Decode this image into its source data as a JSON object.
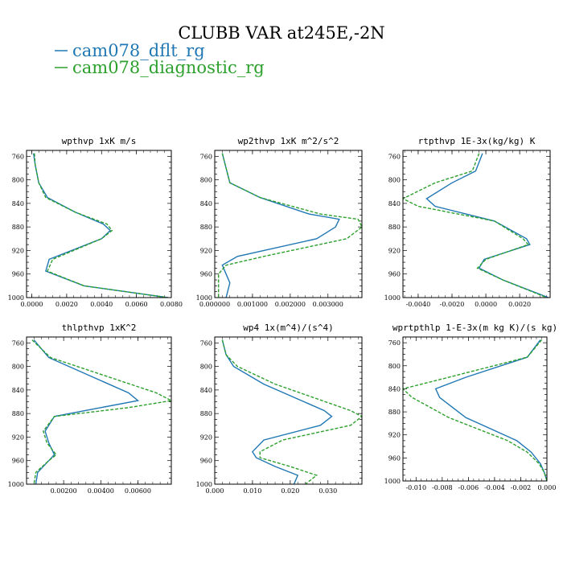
{
  "figure": {
    "title": "CLUBB VAR at245E,-2N",
    "legend": [
      {
        "label": "cam078_dflt_rg",
        "color": "#1f77b4"
      },
      {
        "label": "cam078_diagnostic_rg",
        "color": "#2ca02c"
      }
    ]
  },
  "chart_data": [
    {
      "type": "line",
      "title": "wpthvp  1xK m/s",
      "ylim": [
        1000,
        750
      ],
      "yticks": [
        760,
        800,
        840,
        880,
        920,
        960,
        1000
      ],
      "xlim": [
        -0.0003,
        0.008
      ],
      "xticks": [
        0,
        0.002,
        0.004,
        0.006,
        0.008
      ],
      "xticklabels": [
        "0.0000",
        "0.0020",
        "0.0040",
        "0.0060",
        "0.0080"
      ],
      "y": [
        755,
        775,
        805,
        830,
        855,
        875,
        886,
        900,
        935,
        955,
        980,
        1000
      ],
      "series": [
        {
          "name": "cam078_dflt_rg",
          "color": "#1f77b4",
          "values": [
            0.0001,
            0.0002,
            0.0004,
            0.0009,
            0.0025,
            0.0041,
            0.0045,
            0.004,
            0.001,
            0.0008,
            0.003,
            0.0078
          ]
        },
        {
          "name": "cam078_diagnostic_rg",
          "color": "#2ca02c",
          "values": [
            0.00015,
            0.0002,
            0.0004,
            0.0008,
            0.0025,
            0.0043,
            0.0046,
            0.004,
            0.0012,
            0.0009,
            0.003,
            0.0078
          ]
        }
      ]
    },
    {
      "type": "line",
      "title": "wp2thvp  1xK m^2/s^2",
      "ylim": [
        1000,
        750
      ],
      "yticks": [
        760,
        800,
        840,
        880,
        920,
        960,
        1000
      ],
      "xlim": [
        0,
        0.0039
      ],
      "xticks": [
        0,
        0.001,
        0.002,
        0.003
      ],
      "xticklabels": [
        "0.000000",
        "0.001000",
        "0.002000",
        "0.003000"
      ],
      "y": [
        755,
        780,
        805,
        830,
        858,
        867,
        880,
        900,
        930,
        945,
        960,
        975,
        1000
      ],
      "series": [
        {
          "name": "cam078_dflt_rg",
          "color": "#1f77b4",
          "values": [
            0.0002,
            0.0003,
            0.0004,
            0.0012,
            0.0025,
            0.0033,
            0.0032,
            0.0027,
            0.0006,
            0.0002,
            0.0003,
            0.0004,
            0.0003
          ]
        },
        {
          "name": "cam078_diagnostic_rg",
          "color": "#2ca02c",
          "values": [
            0.0002,
            0.0003,
            0.0004,
            0.0012,
            0.0028,
            0.0038,
            0.0039,
            0.0035,
            0.0013,
            0.0003,
            0.0001,
            0.0001,
            0.0001
          ]
        }
      ]
    },
    {
      "type": "line",
      "title": "rtpthvp  1E-3x(kg/kg) K",
      "ylim": [
        1000,
        750
      ],
      "yticks": [
        760,
        800,
        840,
        880,
        920,
        960,
        1000
      ],
      "xlim": [
        -0.0049,
        0.0038
      ],
      "xticks": [
        -0.004,
        -0.002,
        0,
        0.002
      ],
      "xticklabels": [
        "-0.0040",
        "-0.0020",
        "0.0000",
        "0.0020"
      ],
      "y": [
        755,
        785,
        805,
        832,
        845,
        870,
        900,
        910,
        935,
        950,
        970,
        1000
      ],
      "series": [
        {
          "name": "cam078_dflt_rg",
          "color": "#1f77b4",
          "values": [
            -0.0002,
            -0.0006,
            -0.002,
            -0.0035,
            -0.003,
            0.0005,
            0.0024,
            0.0026,
            -0.0001,
            -0.0004,
            0.001,
            0.0037
          ]
        },
        {
          "name": "cam078_diagnostic_rg",
          "color": "#2ca02c",
          "values": [
            -0.0004,
            -0.0008,
            -0.003,
            -0.0049,
            -0.004,
            0.0005,
            0.0022,
            0.0025,
            0.0,
            -0.0005,
            0.001,
            0.0036
          ]
        }
      ]
    },
    {
      "type": "line",
      "title": "thlpthvp  1xK^2",
      "ylim": [
        1000,
        750
      ],
      "yticks": [
        760,
        800,
        840,
        880,
        920,
        960,
        1000
      ],
      "xlim": [
        0,
        0.0078
      ],
      "xticks": [
        0.002,
        0.004,
        0.006
      ],
      "xticklabels": [
        "0.00200",
        "0.00400",
        "0.00600"
      ],
      "y": [
        755,
        785,
        845,
        858,
        870,
        885,
        910,
        930,
        950,
        960,
        980,
        1000
      ],
      "series": [
        {
          "name": "cam078_dflt_rg",
          "color": "#1f77b4",
          "values": [
            0.0004,
            0.0012,
            0.0055,
            0.006,
            0.004,
            0.0015,
            0.001,
            0.0012,
            0.0015,
            0.0012,
            0.0006,
            0.0005
          ]
        },
        {
          "name": "cam078_diagnostic_rg",
          "color": "#2ca02c",
          "values": [
            0.0003,
            0.0013,
            0.007,
            0.0078,
            0.0055,
            0.0015,
            0.0009,
            0.0011,
            0.0016,
            0.0012,
            0.0005,
            0.0004
          ]
        }
      ]
    },
    {
      "type": "line",
      "title": "wp4  1x(m^4)/(s^4)",
      "ylim": [
        1000,
        750
      ],
      "yticks": [
        760,
        800,
        840,
        880,
        920,
        960,
        1000
      ],
      "xlim": [
        0,
        0.039
      ],
      "xticks": [
        0,
        0.01,
        0.02,
        0.03
      ],
      "xticklabels": [
        "0.000",
        "0.010",
        "0.020",
        "0.030"
      ],
      "y": [
        755,
        780,
        800,
        830,
        875,
        885,
        900,
        925,
        945,
        955,
        970,
        985,
        1000
      ],
      "series": [
        {
          "name": "cam078_dflt_rg",
          "color": "#1f77b4",
          "values": [
            0.002,
            0.003,
            0.005,
            0.013,
            0.029,
            0.031,
            0.028,
            0.013,
            0.01,
            0.011,
            0.016,
            0.022,
            0.021
          ]
        },
        {
          "name": "cam078_diagnostic_rg",
          "color": "#2ca02c",
          "values": [
            0.002,
            0.003,
            0.006,
            0.016,
            0.036,
            0.039,
            0.036,
            0.018,
            0.012,
            0.012,
            0.02,
            0.027,
            0.024
          ]
        }
      ]
    },
    {
      "type": "line",
      "title": "wprtpthlp  1-E-3x(m kg K)/(s kg)",
      "ylim": [
        1000,
        750
      ],
      "yticks": [
        760,
        800,
        840,
        880,
        920,
        960,
        1000
      ],
      "xlim": [
        -0.011,
        0
      ],
      "xticks": [
        -0.01,
        -0.008,
        -0.006,
        -0.004,
        -0.002,
        0
      ],
      "xticklabels": [
        "-0.010",
        "-0.008",
        "-0.006",
        "-0.004",
        "-0.002",
        "0.000"
      ],
      "y": [
        755,
        785,
        820,
        840,
        855,
        890,
        930,
        950,
        970,
        985,
        1000
      ],
      "series": [
        {
          "name": "cam078_dflt_rg",
          "color": "#1f77b4",
          "values": [
            -0.0005,
            -0.0015,
            -0.0062,
            -0.0085,
            -0.0082,
            -0.0062,
            -0.0023,
            -0.0012,
            -0.0005,
            -0.0002,
            0.0
          ]
        },
        {
          "name": "cam078_diagnostic_rg",
          "color": "#2ca02c",
          "values": [
            -0.0004,
            -0.0015,
            -0.0075,
            -0.011,
            -0.0103,
            -0.0075,
            -0.003,
            -0.0015,
            -0.0006,
            -0.0002,
            0.0
          ]
        }
      ]
    }
  ]
}
